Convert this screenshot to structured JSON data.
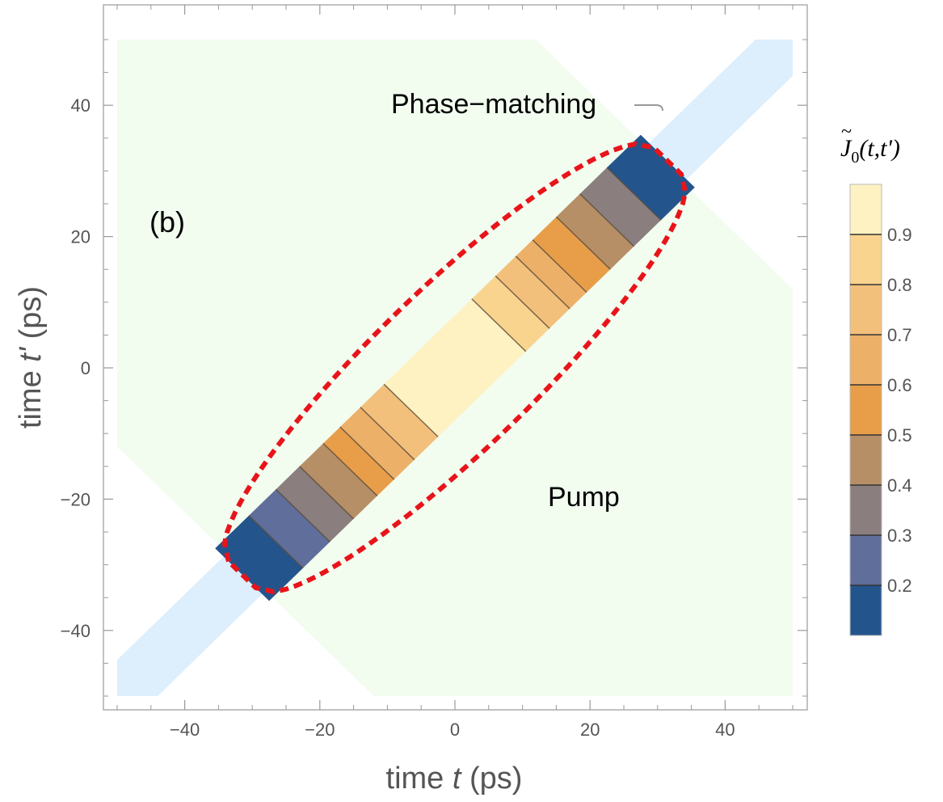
{
  "chart_data": {
    "type": "heatmap",
    "panel_label": "(b)",
    "xlabel": {
      "pre": "time ",
      "var": "t",
      "post": " (ps)"
    },
    "ylabel": {
      "pre": "time ",
      "var": "t'",
      "post": " (ps)"
    },
    "xlim": [
      -50,
      50
    ],
    "ylim": [
      -50,
      50
    ],
    "xticks": [
      -40,
      -20,
      0,
      20,
      40
    ],
    "yticks": [
      -40,
      -20,
      0,
      20,
      40
    ],
    "xtick_labels": [
      "−40",
      "−20",
      "0",
      "20",
      "40"
    ],
    "ytick_labels": [
      "−40",
      "−20",
      "0",
      "20",
      "40"
    ],
    "annotations": {
      "phase_matching": "Phase−matching",
      "pump": "Pump"
    },
    "colorbar": {
      "title": {
        "base": "J",
        "sub": "0",
        "args": "(t,t')"
      },
      "ticks": [
        0.2,
        0.3,
        0.4,
        0.5,
        0.6,
        0.7,
        0.8,
        0.9
      ],
      "tick_labels": [
        "0.2",
        "0.3",
        "0.4",
        "0.5",
        "0.6",
        "0.7",
        "0.8",
        "0.9"
      ],
      "range": [
        0.1,
        1.0
      ],
      "levels": [
        {
          "from": 0.1,
          "to": 0.2,
          "color": "#24548c"
        },
        {
          "from": 0.2,
          "to": 0.3,
          "color": "#5f6e9a"
        },
        {
          "from": 0.3,
          "to": 0.4,
          "color": "#8a7e7e"
        },
        {
          "from": 0.4,
          "to": 0.5,
          "color": "#b68f66"
        },
        {
          "from": 0.5,
          "to": 0.6,
          "color": "#e89e49"
        },
        {
          "from": 0.6,
          "to": 0.7,
          "color": "#edb068"
        },
        {
          "from": 0.7,
          "to": 0.8,
          "color": "#f3c07c"
        },
        {
          "from": 0.8,
          "to": 0.9,
          "color": "#f9d48f"
        },
        {
          "from": 0.9,
          "to": 1.0,
          "color": "#fef2c2"
        }
      ]
    },
    "regions": {
      "pump": {
        "color": "#f2fcef",
        "polygon": [
          [
            -50,
            50
          ],
          [
            12,
            50
          ],
          [
            50,
            12
          ],
          [
            50,
            -50
          ],
          [
            -12,
            -50
          ],
          [
            -50,
            -12
          ]
        ]
      },
      "phase_matching": {
        "color": "#ddeefc",
        "polygon": [
          [
            -50,
            -44.5
          ],
          [
            44.5,
            50
          ],
          [
            50,
            50
          ],
          [
            50,
            44.5
          ],
          [
            -44,
            -50
          ],
          [
            -50,
            -50
          ]
        ]
      }
    },
    "joint_band": {
      "diagonal_start": -31.5,
      "diagonal_end": 31.5,
      "half_width": 4.0,
      "cells": [
        {
          "from": -31.5,
          "to": -26.5,
          "level": 0.15
        },
        {
          "from": -26.5,
          "to": -22.5,
          "level": 0.25
        },
        {
          "from": -22.5,
          "to": -19.0,
          "level": 0.35
        },
        {
          "from": -19.0,
          "to": -15.5,
          "level": 0.45
        },
        {
          "from": -15.5,
          "to": -13.0,
          "level": 0.55
        },
        {
          "from": -13.0,
          "to": -10.0,
          "level": 0.65
        },
        {
          "from": -10.0,
          "to": -6.5,
          "level": 0.75
        },
        {
          "from": -6.5,
          "to": 6.5,
          "level": 0.95
        },
        {
          "from": 6.5,
          "to": 10.0,
          "level": 0.85
        },
        {
          "from": 10.0,
          "to": 13.0,
          "level": 0.75
        },
        {
          "from": 13.0,
          "to": 15.5,
          "level": 0.65
        },
        {
          "from": 15.5,
          "to": 19.0,
          "level": 0.55
        },
        {
          "from": 19.0,
          "to": 22.5,
          "level": 0.45
        },
        {
          "from": 22.5,
          "to": 26.5,
          "level": 0.35
        },
        {
          "from": 26.5,
          "to": 31.5,
          "level": 0.15
        }
      ]
    },
    "contour": {
      "color": "#e8141a",
      "diagonal_extent": 31.5,
      "half_width_center": 8.5,
      "half_width_end": 2.0
    }
  }
}
